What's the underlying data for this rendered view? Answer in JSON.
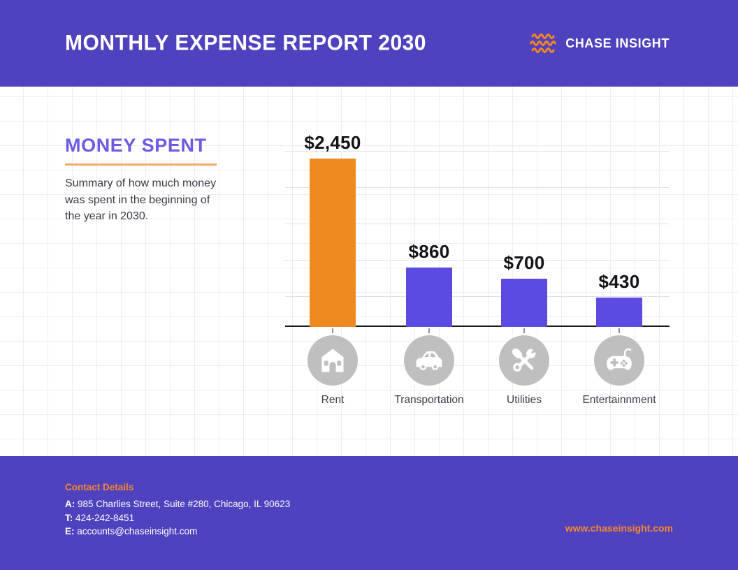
{
  "header": {
    "title": "MONTHLY EXPENSE REPORT 2030",
    "brand": "CHASE INSIGHT"
  },
  "summary": {
    "title": "MONEY SPENT",
    "description": "Summary of how much money was spent in the beginning of the year in 2030."
  },
  "chart_data": {
    "type": "bar",
    "title": "MONEY SPENT",
    "categories": [
      "Rent",
      "Transportation",
      "Utilities",
      "Entertainnment"
    ],
    "values": [
      2450,
      860,
      700,
      430
    ],
    "value_labels": [
      "$2,450",
      "$860",
      "$700",
      "$430"
    ],
    "bar_colors": [
      "#EE8A1F",
      "#5C4BE0",
      "#5C4BE0",
      "#5C4BE0"
    ],
    "icons": [
      "home-icon",
      "car-icon",
      "tools-icon",
      "gamepad-icon"
    ],
    "unit": "USD",
    "ylabel": "",
    "xlabel": "",
    "ylim": [
      0,
      2700
    ],
    "gridlines": 5,
    "legend": false
  },
  "footer": {
    "contact_heading": "Contact Details",
    "contact_lines": [
      {
        "prefix": "A:",
        "text": "985 Charlies Street, Suite #280, Chicago, IL 90623"
      },
      {
        "prefix": "T:",
        "text": "424-242-8451"
      },
      {
        "prefix": "E:",
        "text": "accounts@chaseinsight.com"
      }
    ],
    "website": "www.chaseinsight.com"
  },
  "colors": {
    "header_purple": "#4f42bf",
    "bar_purple": "#5C4BE0",
    "bar_orange": "#EE8A1F",
    "logo_orange": "#F6861F",
    "underline_orange": "#f2aa69",
    "footer_orange": "#f6862a",
    "icon_gray": "#BFBFBF",
    "axis_black": "#17171c",
    "grid_gray": "#efecf4"
  }
}
